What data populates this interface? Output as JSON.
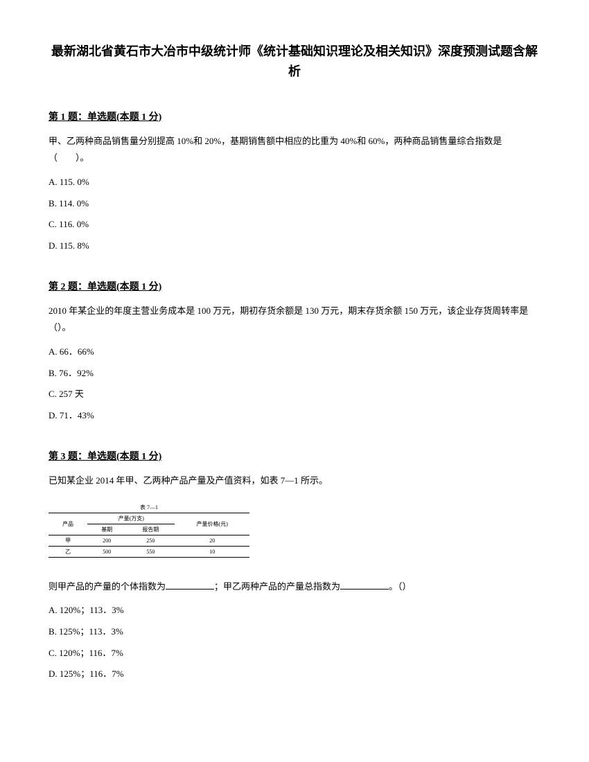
{
  "title": "最新湖北省黄石市大冶市中级统计师《统计基础知识理论及相关知识》深度预测试题含解析",
  "questions": [
    {
      "header": "第 1 题：单选题(本题 1 分)",
      "text": "甲、乙两种商品销售量分别提高 10%和 20%，基期销售额中相应的比重为 40%和 60%，两种商品销售量综合指数是（　　）。",
      "options": [
        "A. 115. 0%",
        "B. 114. 0%",
        "C. 116. 0%",
        "D. 115. 8%"
      ]
    },
    {
      "header": "第 2 题：单选题(本题 1 分)",
      "text": "2010 年某企业的年度主营业务成本是 100 万元，期初存货余额是 130 万元，期末存货余额 150 万元，该企业存货周转率是（）。",
      "options": [
        "A. 66．66%",
        "B. 76．92%",
        "C. 257 天",
        "D. 71．43%"
      ]
    },
    {
      "header": "第 3 题：单选题(本题 1 分)",
      "text": "已知某企业 2014 年甲、乙两种产品产量及产值资料，如表 7—1 所示。",
      "text2_pre": "则甲产品的产量的个体指数为",
      "text2_mid": "；甲乙两种产品的产量总指数为",
      "text2_suf": "。（）",
      "options": [
        "A. 120%；113．3%",
        "B. 125%；113．3%",
        "C. 120%；116．7%",
        "D. 125%；116．7%"
      ]
    }
  ],
  "table": {
    "caption": "表 7—1",
    "header_row1_col1": "产品",
    "header_row1_col2": "产量(万支)",
    "header_row1_col3": "产量价格(元)",
    "sub_col1": "基期",
    "sub_col2": "报告期",
    "rows": [
      {
        "product": "甲",
        "base": "200",
        "report": "250",
        "price": "20"
      },
      {
        "product": "乙",
        "base": "500",
        "report": "550",
        "price": "10"
      }
    ]
  }
}
